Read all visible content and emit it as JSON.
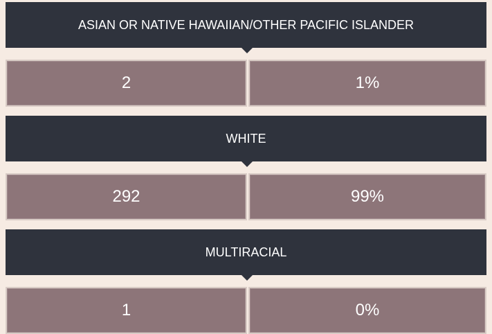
{
  "groups": [
    {
      "label": "ASIAN OR NATIVE HAWAIIAN/OTHER PACIFIC ISLANDER",
      "count": 2,
      "percent": "1%"
    },
    {
      "label": "WHITE",
      "count": 292,
      "percent": "99%"
    },
    {
      "label": "MULTIRACIAL",
      "count": 1,
      "percent": "0%"
    }
  ]
}
